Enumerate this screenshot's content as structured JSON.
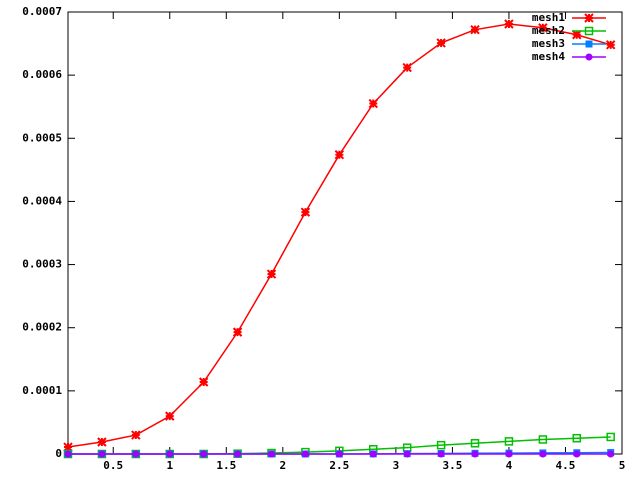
{
  "chart_data": {
    "type": "line",
    "x": [
      0.1,
      0.4,
      0.7,
      1.0,
      1.3,
      1.6,
      1.9,
      2.2,
      2.5,
      2.8,
      3.1,
      3.4,
      3.7,
      4.0,
      4.3,
      4.6,
      4.9
    ],
    "series": [
      {
        "name": "mesh1",
        "color": "#ff0000",
        "marker": "star",
        "values": [
          1.1e-05,
          1.9e-05,
          3e-05,
          6e-05,
          0.000114,
          0.000193,
          0.000285,
          0.000383,
          0.000474,
          0.000555,
          0.000612,
          0.000651,
          0.000672,
          0.000681,
          0.000675,
          0.000664,
          0.000648
        ]
      },
      {
        "name": "mesh2",
        "color": "#00c000",
        "marker": "open-square",
        "values": [
          0,
          0,
          0,
          0,
          0,
          5e-07,
          1.5e-06,
          3e-06,
          5e-06,
          7.5e-06,
          1e-05,
          1.4e-05,
          1.7e-05,
          2e-05,
          2.3e-05,
          2.5e-05,
          2.7e-05
        ]
      },
      {
        "name": "mesh3",
        "color": "#0080ff",
        "marker": "filled-square",
        "values": [
          0,
          0,
          0,
          0,
          0,
          0,
          0,
          0,
          0,
          2e-07,
          5e-07,
          8e-07,
          1.1e-06,
          1.4e-06,
          1.7e-06,
          2e-06,
          2.3e-06
        ]
      },
      {
        "name": "mesh4",
        "color": "#a000ff",
        "marker": "filled-circle",
        "values": [
          0,
          0,
          0,
          0,
          0,
          0,
          0,
          0,
          0,
          0,
          0,
          0,
          0,
          0,
          0,
          0,
          0
        ]
      }
    ],
    "xlim": [
      0.1,
      5
    ],
    "xticks": [
      0.5,
      1,
      1.5,
      2,
      2.5,
      3,
      3.5,
      4,
      4.5,
      5
    ],
    "ylim": [
      0,
      0.0007
    ],
    "yticks": [
      0,
      0.0001,
      0.0002,
      0.0003,
      0.0004,
      0.0005,
      0.0006,
      0.0007
    ],
    "grid": false,
    "legend": "top-right"
  }
}
